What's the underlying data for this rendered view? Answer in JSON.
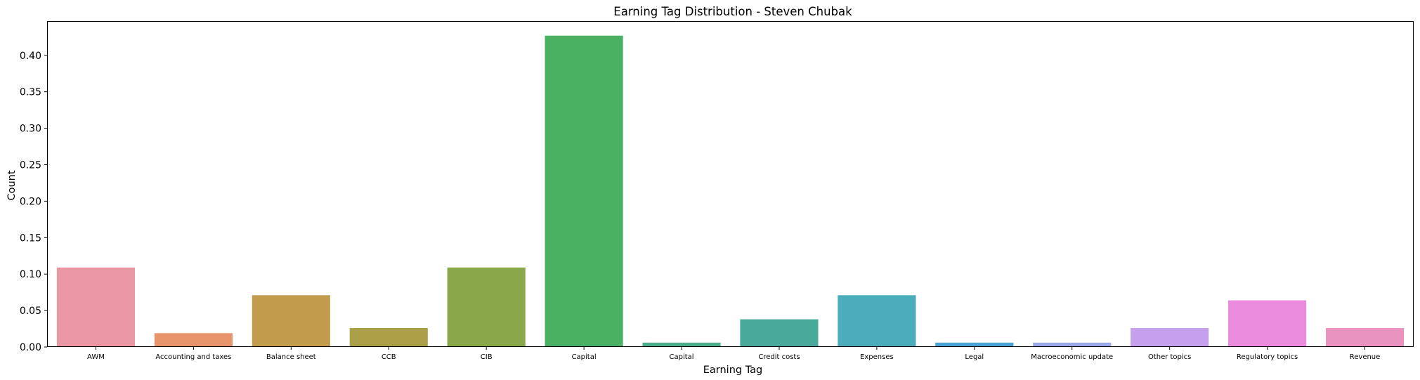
{
  "chart_data": {
    "type": "bar",
    "title": "Earning Tag Distribution - Steven Chubak",
    "xlabel": "Earning Tag",
    "ylabel": "Count",
    "ylim": [
      0,
      0.447
    ],
    "yticks": [
      0.0,
      0.05,
      0.1,
      0.15,
      0.2,
      0.25,
      0.3,
      0.35,
      0.4
    ],
    "ytick_labels": [
      "0.00",
      "0.05",
      "0.10",
      "0.15",
      "0.20",
      "0.25",
      "0.30",
      "0.35",
      "0.40"
    ],
    "grid": false,
    "categories": [
      "AWM",
      "Accounting and taxes",
      "Balance sheet",
      "CCB",
      "CIB",
      "Capital",
      "Capital ",
      "Credit costs",
      "Expenses",
      "Legal",
      "Macroeconomic update",
      "Other topics",
      "Regulatory topics",
      "Revenue"
    ],
    "values": [
      0.109,
      0.019,
      0.071,
      0.026,
      0.109,
      0.427,
      0.006,
      0.038,
      0.071,
      0.006,
      0.006,
      0.026,
      0.064,
      0.026
    ],
    "colors": [
      "#ea96a3",
      "#e8946a",
      "#c29b4d",
      "#aba048",
      "#8aa749",
      "#4ab162",
      "#4cae8b",
      "#49aa9c",
      "#4badbc",
      "#4ba4d3",
      "#9aa9ea",
      "#c5a0ec",
      "#ea8bde",
      "#e993c0"
    ]
  }
}
